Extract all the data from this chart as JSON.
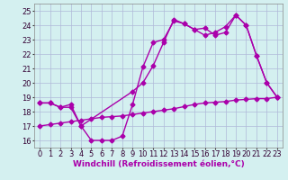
{
  "xlabel": "Windchill (Refroidissement éolien,°C)",
  "background_color": "#d4f0f0",
  "grid_color": "#b0b8d8",
  "line_color": "#aa00aa",
  "xlim": [
    -0.5,
    23.5
  ],
  "ylim": [
    15.5,
    25.5
  ],
  "yticks": [
    16,
    17,
    18,
    19,
    20,
    21,
    22,
    23,
    24,
    25
  ],
  "xticks": [
    0,
    1,
    2,
    3,
    4,
    5,
    6,
    7,
    8,
    9,
    10,
    11,
    12,
    13,
    14,
    15,
    16,
    17,
    18,
    19,
    20,
    21,
    22,
    23
  ],
  "series": [
    {
      "x": [
        0,
        1,
        2,
        3,
        4,
        9,
        10,
        11,
        12,
        13,
        14,
        15,
        16,
        17,
        18,
        19,
        20,
        21,
        22,
        23
      ],
      "y": [
        18.6,
        18.6,
        18.3,
        18.5,
        17.0,
        19.4,
        20.0,
        21.2,
        22.8,
        24.4,
        24.1,
        23.7,
        23.8,
        23.3,
        23.5,
        24.7,
        24.0,
        21.9,
        20.0,
        19.0
      ]
    },
    {
      "x": [
        0,
        1,
        2,
        3,
        4,
        5,
        6,
        7,
        8,
        9,
        10,
        11,
        12,
        13,
        14,
        15,
        16,
        17,
        18,
        19,
        20,
        21,
        22,
        23
      ],
      "y": [
        18.6,
        18.6,
        18.3,
        18.3,
        17.0,
        16.0,
        16.0,
        16.0,
        16.3,
        18.5,
        21.1,
        22.8,
        23.0,
        24.3,
        24.1,
        23.7,
        23.3,
        23.5,
        23.9,
        24.7,
        24.0,
        21.9,
        20.0,
        19.0
      ]
    },
    {
      "x": [
        0,
        1,
        2,
        3,
        4,
        5,
        6,
        7,
        8,
        9,
        10,
        11,
        12,
        13,
        14,
        15,
        16,
        17,
        18,
        19,
        20,
        21,
        22,
        23
      ],
      "y": [
        17.0,
        17.1,
        17.2,
        17.3,
        17.4,
        17.5,
        17.6,
        17.65,
        17.7,
        17.8,
        17.9,
        18.0,
        18.1,
        18.2,
        18.35,
        18.5,
        18.6,
        18.65,
        18.7,
        18.8,
        18.85,
        18.9,
        18.9,
        19.0
      ]
    }
  ],
  "marker": "D",
  "markersize": 2.5,
  "linewidth": 1.0,
  "xlabel_fontsize": 6.5,
  "tick_fontsize": 6.0,
  "label_color": "#aa00aa"
}
